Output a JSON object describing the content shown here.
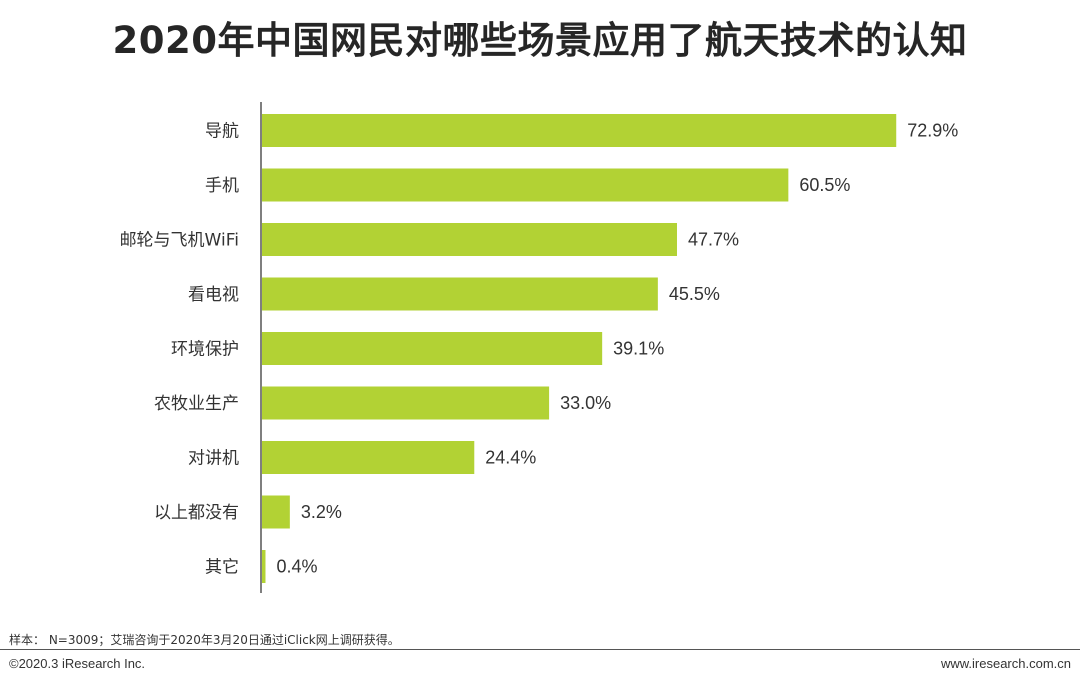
{
  "header": {
    "title": "2020年中国网民对哪些场景应用了航天技术的认知"
  },
  "chart_data": {
    "type": "bar",
    "orientation": "horizontal",
    "title": "2020年中国网民对哪些场景应用了航天技术的认知",
    "xlabel": "",
    "ylabel": "",
    "xlim": [
      0,
      75
    ],
    "grid": false,
    "legend": "none",
    "bar_color": "#b2d234",
    "axis_color": "#555555",
    "categories": [
      "导航",
      "手机",
      "邮轮与飞机WiFi",
      "看电视",
      "环境保护",
      "农牧业生产",
      "对讲机",
      "以上都没有",
      "其它"
    ],
    "values": [
      72.9,
      60.5,
      47.7,
      45.5,
      39.1,
      33.0,
      24.4,
      3.2,
      0.4
    ],
    "value_labels": [
      "72.9%",
      "60.5%",
      "47.7%",
      "45.5%",
      "39.1%",
      "33.0%",
      "24.4%",
      "3.2%",
      "0.4%"
    ]
  },
  "footer": {
    "note": "样本： N=3009；艾瑞咨询于2020年3月20日通过iClick网上调研获得。",
    "copyright": "©2020.3 iResearch Inc.",
    "website": "www.iresearch.com.cn"
  }
}
